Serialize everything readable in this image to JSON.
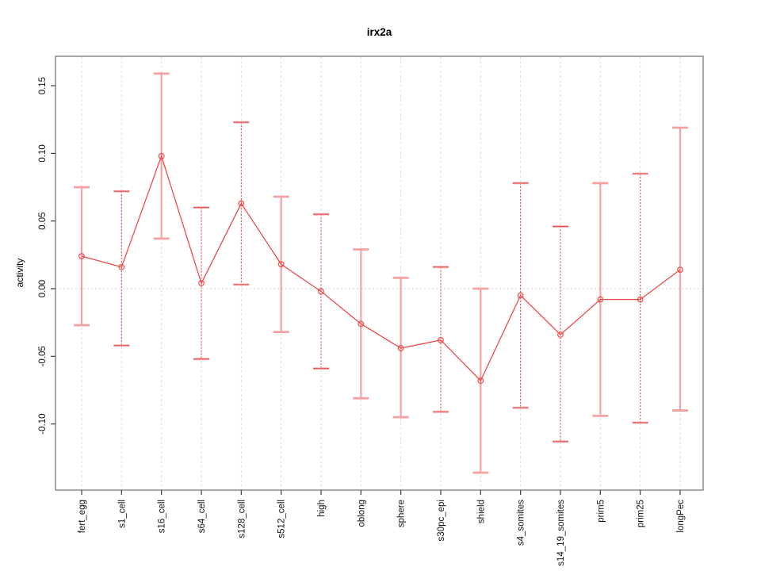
{
  "window": {
    "background": "#ffffff"
  },
  "chart_data": {
    "type": "line",
    "title": "irx2a",
    "xlabel": "",
    "ylabel": "activity",
    "legend": "none",
    "grid": "vertical dashed gridline at every category; dotted horizontal line at y=0",
    "ylim": [
      -0.149,
      0.172
    ],
    "ytick_values": [
      0.15,
      0.1,
      0.05,
      0.0,
      -0.05,
      -0.1
    ],
    "ytick_labels": [
      "0.15",
      "0.10",
      "0.05",
      "0.00",
      "-0.05",
      "-0.10"
    ],
    "categories": [
      "fert_egg",
      "s1_cell",
      "s16_cell",
      "s64_cell",
      "s128_cell",
      "s512_cell",
      "high",
      "oblong",
      "sphere",
      "s30pc_epi",
      "shield",
      "s4_somites",
      "s14_19_somites",
      "prim5",
      "prim25",
      "longPec"
    ],
    "series": [
      {
        "name": "activity",
        "marker": "open-circle",
        "values": [
          0.024,
          0.016,
          0.098,
          0.004,
          0.063,
          0.018,
          -0.002,
          -0.026,
          -0.044,
          -0.038,
          -0.068,
          -0.005,
          -0.034,
          -0.008,
          -0.008,
          0.014
        ],
        "error_high": [
          0.075,
          0.072,
          0.159,
          0.06,
          0.123,
          0.068,
          0.055,
          0.029,
          0.008,
          0.016,
          0.0,
          0.078,
          0.046,
          0.078,
          0.085,
          0.119
        ],
        "error_low": [
          -0.027,
          -0.042,
          0.037,
          -0.052,
          0.003,
          -0.032,
          -0.059,
          -0.081,
          -0.095,
          -0.091,
          -0.136,
          -0.088,
          -0.113,
          -0.094,
          -0.099,
          -0.09
        ],
        "error_bar_style": [
          "solid",
          "dashed",
          "solid",
          "dashed",
          "dashed",
          "solid",
          "dashed",
          "solid",
          "solid",
          "dashed",
          "solid",
          "dashed",
          "dashed",
          "solid",
          "dashed",
          "solid"
        ]
      }
    ]
  },
  "colors": {
    "series_line": "#ec4b4b",
    "marker_stroke": "#ec4b4b",
    "errorbar_solid": "#f5a2a2",
    "errorbar_dashed": "#e25252",
    "errorbar_cap_underlay": "#f8b0b0",
    "gridline": "#dcdcdc",
    "zero_line": "#d4d4d4",
    "frame": "#828282",
    "tick": "#3c3c3c",
    "tick_label": "#111111",
    "title_text": "#000000"
  }
}
